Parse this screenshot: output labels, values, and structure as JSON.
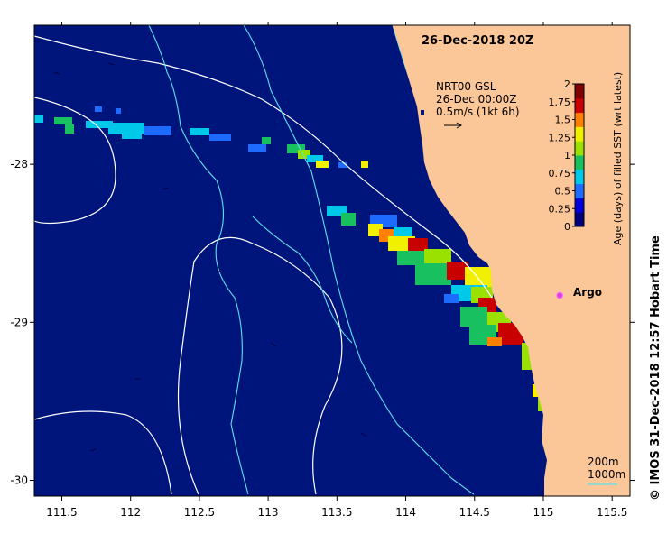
{
  "title": "26-Dec-2018 20Z",
  "credit": "© IMOS 31-Dec-2018 12:57 Hobart Time",
  "current_legend": {
    "line1": "NRT00 GSL",
    "line2": "26-Dec 00:00Z",
    "line3": "0.5m/s (1kt 6h)"
  },
  "bathymetry_legend": {
    "contour_200": "200m",
    "contour_1000": "1000m"
  },
  "argo": {
    "label": "Argo",
    "lon": 115.12,
    "lat": -28.83,
    "color": "#e040e0"
  },
  "colorbar": {
    "title": "Age (days) of filled SST (wrt latest)",
    "ticks": [
      "0",
      "0.25",
      "0.5",
      "0.75",
      "1",
      "1.25",
      "1.5",
      "1.75",
      "2"
    ],
    "colors": [
      "#00007a",
      "#0000d8",
      "#1e6cff",
      "#00c8e8",
      "#18c060",
      "#9ae000",
      "#f0f000",
      "#ff8000",
      "#c80000",
      "#800000"
    ]
  },
  "axes": {
    "x_ticks": [
      "111.5",
      "112",
      "112.5",
      "113",
      "113.5",
      "114",
      "114.5",
      "115",
      "115.5"
    ],
    "y_ticks": [
      "-28",
      "-29",
      "-30"
    ],
    "lon_range": [
      111.3,
      115.63
    ],
    "lat_range": [
      -30.1,
      -27.12
    ]
  },
  "colors": {
    "ocean": "#00157c",
    "land": "#fbc698",
    "contour_200": "#60e0e8",
    "contour_1000": "#ffffff"
  }
}
